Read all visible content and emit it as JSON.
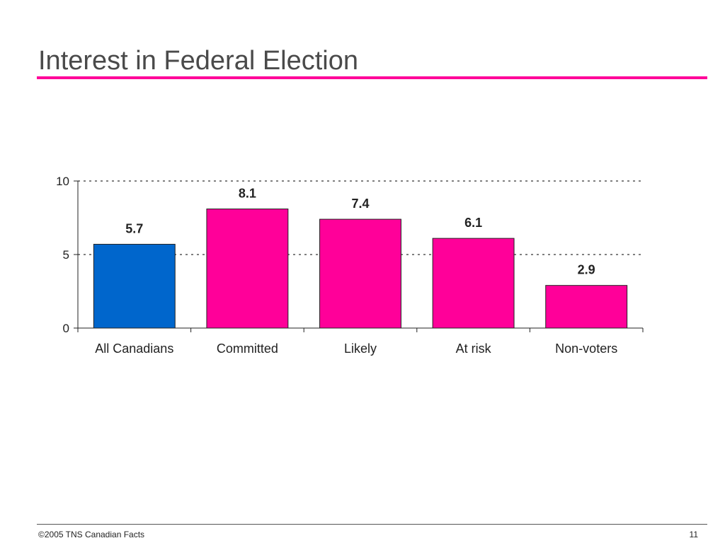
{
  "slide": {
    "title": "Interest in Federal Election",
    "footer_left": "©2005 TNS Canadian Facts",
    "page_number": "11",
    "accent_color": "#ff0099"
  },
  "chart_data": {
    "type": "bar",
    "title": "",
    "xlabel": "",
    "ylabel": "",
    "categories": [
      "All Canadians",
      "Committed",
      "Likely",
      "At risk",
      "Non-voters"
    ],
    "values": [
      5.7,
      8.1,
      7.4,
      6.1,
      2.9
    ],
    "value_labels": [
      "5.7",
      "8.1",
      "7.4",
      "6.1",
      "2.9"
    ],
    "bar_colors": [
      "#0066cc",
      "#ff0099",
      "#ff0099",
      "#ff0099",
      "#ff0099"
    ],
    "ylim": [
      0,
      10
    ],
    "yticks": [
      0,
      5,
      10
    ],
    "ytick_labels": [
      "0",
      "5",
      "10"
    ],
    "grid": "dotted horizontal at 5 and 10",
    "legend": "none"
  }
}
